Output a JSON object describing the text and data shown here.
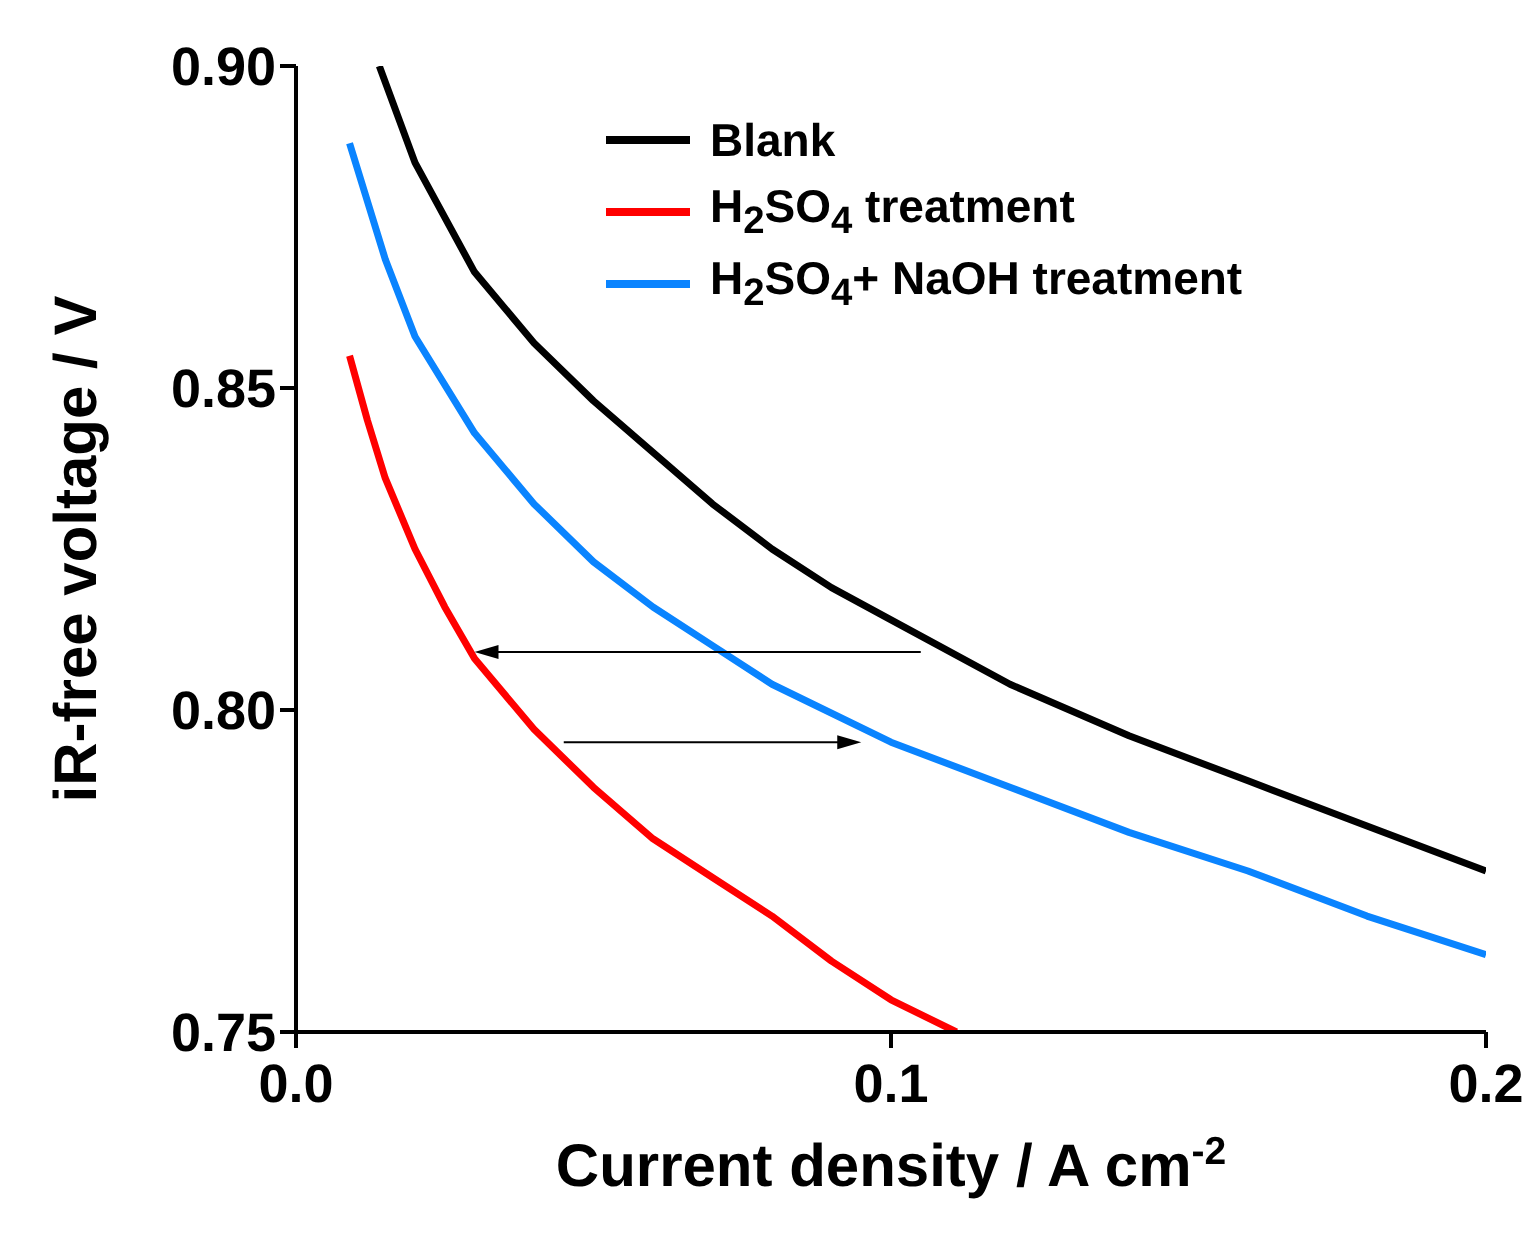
{
  "chart_data": {
    "type": "line",
    "xlabel": "Current density / A cm$^{-2}$",
    "ylabel": "iR-free voltage / V",
    "xlim": [
      0,
      0.2
    ],
    "xticks": [
      {
        "value": 0,
        "label": "0.0"
      },
      {
        "value": 0.1,
        "label": "0.1"
      },
      {
        "value": 0.2,
        "label": "0.2"
      }
    ],
    "ylim": [
      0.75,
      0.9
    ],
    "yticks": [
      {
        "value": 0.75,
        "label": "0.75"
      },
      {
        "value": 0.8,
        "label": "0.80"
      },
      {
        "value": 0.85,
        "label": "0.85"
      },
      {
        "value": 0.9,
        "label": "0.90"
      }
    ],
    "legend": "top right",
    "grid": false,
    "marker": "none",
    "line_style": "solid",
    "series": [
      {
        "name": "Blank",
        "color": "#000000",
        "x": [
          0.014,
          0.02,
          0.03,
          0.04,
          0.05,
          0.06,
          0.07,
          0.08,
          0.09,
          0.1,
          0.12,
          0.14,
          0.16,
          0.18,
          0.2
        ],
        "values": [
          0.9,
          0.885,
          0.868,
          0.857,
          0.848,
          0.84,
          0.832,
          0.825,
          0.819,
          0.814,
          0.804,
          0.796,
          0.789,
          0.782,
          0.775
        ]
      },
      {
        "name": "H$_{2}$SO$_{4}$ treatment",
        "color": "#ff0000",
        "x": [
          0.009,
          0.012,
          0.015,
          0.02,
          0.025,
          0.03,
          0.04,
          0.05,
          0.06,
          0.07,
          0.08,
          0.09,
          0.1,
          0.111
        ],
        "values": [
          0.855,
          0.845,
          0.836,
          0.825,
          0.816,
          0.808,
          0.797,
          0.788,
          0.78,
          0.774,
          0.768,
          0.761,
          0.755,
          0.75
        ]
      },
      {
        "name": "H$_{2}$SO$_{4}$+ NaOH treatment",
        "color": "#0a84ff",
        "x": [
          0.009,
          0.015,
          0.02,
          0.03,
          0.04,
          0.05,
          0.06,
          0.07,
          0.08,
          0.1,
          0.12,
          0.14,
          0.16,
          0.18,
          0.2
        ],
        "values": [
          0.888,
          0.87,
          0.858,
          0.843,
          0.832,
          0.823,
          0.816,
          0.81,
          0.804,
          0.795,
          0.788,
          0.781,
          0.775,
          0.768,
          0.762
        ]
      }
    ]
  }
}
